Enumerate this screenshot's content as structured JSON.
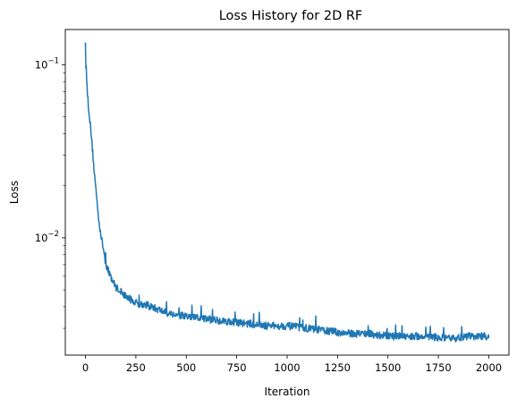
{
  "chart_data": {
    "type": "line",
    "title": "Loss History for 2D RF",
    "xlabel": "Iteration",
    "ylabel": "Loss",
    "yscale": "log",
    "xlim": [
      -100,
      2100
    ],
    "ylim": [
      0.0021,
      0.16
    ],
    "x_ticks": [
      0,
      250,
      500,
      750,
      1000,
      1250,
      1500,
      1750,
      2000
    ],
    "x_tick_labels": [
      "0",
      "250",
      "500",
      "750",
      "1000",
      "1250",
      "1500",
      "1750",
      "2000"
    ],
    "y_major_ticks": [
      0.01,
      0.1
    ],
    "y_tick_labels": [
      {
        "base": "10",
        "exp": "−2"
      },
      {
        "base": "10",
        "exp": "−1"
      }
    ],
    "y_minor_ticks": [
      0.003,
      0.004,
      0.005,
      0.006,
      0.007,
      0.008,
      0.009,
      0.02,
      0.03,
      0.04,
      0.05,
      0.06,
      0.07,
      0.08,
      0.09
    ],
    "grid": false,
    "series": [
      {
        "color": "#1f77b4",
        "noise": 0.05,
        "x": [
          0,
          2,
          5,
          10,
          15,
          20,
          30,
          40,
          50,
          60,
          70,
          80,
          90,
          100,
          110,
          120,
          130,
          140,
          150,
          175,
          200,
          225,
          250,
          300,
          350,
          400,
          450,
          500,
          600,
          700,
          800,
          900,
          1000,
          1100,
          1200,
          1300,
          1400,
          1500,
          1600,
          1700,
          1800,
          1900,
          2000
        ],
        "y": [
          0.13,
          0.1,
          0.085,
          0.068,
          0.058,
          0.05,
          0.038,
          0.027,
          0.02,
          0.015,
          0.0118,
          0.0098,
          0.0085,
          0.0072,
          0.0066,
          0.0062,
          0.0058,
          0.0055,
          0.0052,
          0.0049,
          0.0046,
          0.0044,
          0.0042,
          0.0041,
          0.0039,
          0.0037,
          0.0036,
          0.0035,
          0.0034,
          0.0033,
          0.0032,
          0.0031,
          0.0031,
          0.003,
          0.0029,
          0.0028,
          0.0028,
          0.0027,
          0.0027,
          0.0027,
          0.0026,
          0.0027,
          0.0027
        ]
      }
    ]
  }
}
